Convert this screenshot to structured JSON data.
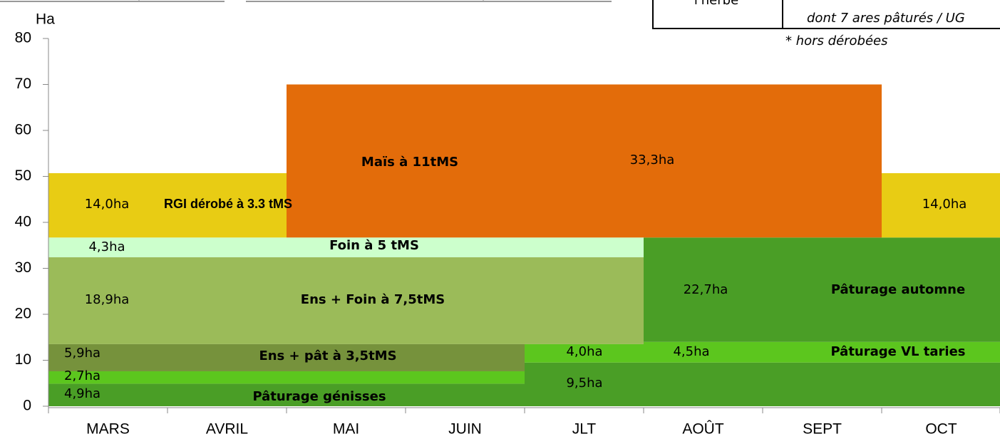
{
  "chart_data": {
    "type": "block",
    "y_label": "Ha",
    "categories": [
      "MARS",
      "AVRIL",
      "MAI",
      "JUIN",
      "JLT",
      "AOÛT",
      "SEPT",
      "OCT"
    ],
    "ylim": [
      0,
      80
    ],
    "yticks": [
      0,
      10,
      20,
      30,
      40,
      50,
      60,
      70,
      80
    ],
    "blocks": [
      {
        "value": 4.9,
        "value_label": "4,9ha",
        "start": "MARS",
        "end": "JUIN",
        "color": "#4a9e26",
        "name": "Pâturage génisses"
      },
      {
        "value": 9.5,
        "value_label": "9,5ha",
        "start": "JLT",
        "end": "OCT",
        "color": "#4a9e26"
      },
      {
        "value": 2.7,
        "value_label": "2,7ha",
        "start": "MARS",
        "end": "JUIN",
        "color": "#5cc61e"
      },
      {
        "value": 4.0,
        "value_label": "4,0ha",
        "start": "JLT",
        "end": "JLT",
        "color": "#5cc61e"
      },
      {
        "value": 4.5,
        "value_label": "4,5ha",
        "start": "AOÛT",
        "end": "OCT",
        "color": "#5cc61e",
        "name": "Pâturage VL taries"
      },
      {
        "value": 5.9,
        "value_label": "5,9ha",
        "start": "MARS",
        "end": "JUIN",
        "color": "#76923c",
        "name": "Ens + pât à 3,5tMS"
      },
      {
        "value": 18.9,
        "value_label": "18,9ha",
        "start": "MARS",
        "end": "JLT",
        "color": "#9bbb59",
        "name": "Ens + Foin à 7,5tMS"
      },
      {
        "value": 22.7,
        "value_label": "22,7ha",
        "start": "AOÛT",
        "end": "OCT",
        "color": "#4a9e26",
        "name": "Pâturage automne"
      },
      {
        "value": 4.3,
        "value_label": "4,3ha",
        "start": "MARS",
        "end": "JLT",
        "color": "#ccffcc",
        "name": "Foin à 5 tMS"
      },
      {
        "value": 33.3,
        "value_label": "33,3ha",
        "start": "MAI",
        "end": "SEPT",
        "color": "#e36c0a",
        "name": "Maïs à 11tMS"
      },
      {
        "value": 14.0,
        "value_label": "14,0ha",
        "start": "MARS",
        "end": "AVRIL",
        "color": "#e8cc14",
        "name": "RGI dérobé à 3.3 tMS"
      },
      {
        "value": 14.0,
        "value_label": "14,0ha",
        "start": "OCT",
        "end": "OCT",
        "color": "#e8cc14"
      }
    ]
  },
  "table": {
    "row_label": "l'herbe",
    "row_note": "dont 7  ares pâturés / UG"
  },
  "footnote": "* hors dérobées"
}
